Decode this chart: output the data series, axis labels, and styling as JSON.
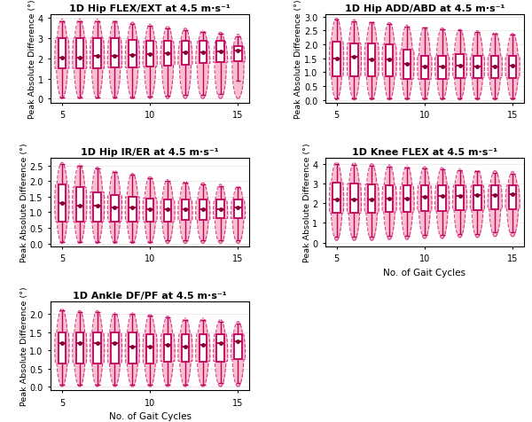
{
  "panels": [
    {
      "title": "1D Hip FLEX/EXT at 4.5 m·s⁻¹",
      "ylabel": "Peak Absolute Difference (°)",
      "ylim": [
        -0.2,
        4.2
      ],
      "yticks": [
        0,
        1,
        2,
        3,
        4
      ],
      "medians": [
        2.05,
        2.05,
        2.1,
        2.1,
        2.15,
        2.2,
        2.25,
        2.3,
        2.3,
        2.35,
        2.4
      ],
      "q1": [
        1.5,
        1.5,
        1.5,
        1.55,
        1.55,
        1.6,
        1.65,
        1.7,
        1.75,
        1.8,
        1.85
      ],
      "q3": [
        3.0,
        3.0,
        3.0,
        3.0,
        2.9,
        2.85,
        2.85,
        2.85,
        2.85,
        2.85,
        2.6
      ],
      "whislo": [
        0.05,
        0.05,
        0.05,
        0.05,
        0.05,
        0.1,
        0.15,
        0.2,
        0.2,
        0.25,
        0.9
      ],
      "whishi": [
        3.85,
        3.85,
        3.85,
        3.85,
        3.7,
        3.6,
        3.5,
        3.4,
        3.3,
        3.2,
        3.1
      ],
      "vmin": [
        0.0,
        0.0,
        0.0,
        0.0,
        0.0,
        0.0,
        0.0,
        0.0,
        0.0,
        0.0,
        0.0
      ],
      "vmax": [
        3.95,
        3.95,
        3.95,
        3.9,
        3.8,
        3.7,
        3.6,
        3.5,
        3.4,
        3.3,
        3.2
      ]
    },
    {
      "title": "1D Hip ADD/ABD at 4.5 m·s⁻¹",
      "ylabel": "Peak Absolute Difference (°)",
      "ylim": [
        -0.1,
        3.1
      ],
      "yticks": [
        0.0,
        0.5,
        1.0,
        1.5,
        2.0,
        2.5,
        3.0
      ],
      "medians": [
        1.5,
        1.55,
        1.45,
        1.45,
        1.3,
        1.2,
        1.2,
        1.25,
        1.2,
        1.2,
        1.25
      ],
      "q1": [
        0.85,
        0.85,
        0.85,
        0.85,
        0.75,
        0.75,
        0.75,
        0.8,
        0.8,
        0.8,
        0.8
      ],
      "q3": [
        2.1,
        2.05,
        2.05,
        2.0,
        1.8,
        1.6,
        1.6,
        1.65,
        1.6,
        1.6,
        1.6
      ],
      "whislo": [
        0.05,
        0.05,
        0.05,
        0.05,
        0.05,
        0.05,
        0.05,
        0.05,
        0.05,
        0.05,
        0.05
      ],
      "whishi": [
        2.9,
        2.85,
        2.8,
        2.75,
        2.65,
        2.6,
        2.55,
        2.5,
        2.45,
        2.4,
        2.35
      ],
      "vmin": [
        0.0,
        0.0,
        0.0,
        0.0,
        0.0,
        0.0,
        0.0,
        0.0,
        0.0,
        0.0,
        0.0
      ],
      "vmax": [
        2.95,
        2.9,
        2.85,
        2.8,
        2.7,
        2.65,
        2.6,
        2.55,
        2.5,
        2.45,
        2.4
      ]
    },
    {
      "title": "1D Hip IR/ER at 4.5 m·s⁻¹",
      "ylabel": "Peak Absolute Difference (°)",
      "ylim": [
        -0.1,
        2.75
      ],
      "yticks": [
        0.0,
        0.5,
        1.0,
        1.5,
        2.0,
        2.5
      ],
      "medians": [
        1.3,
        1.2,
        1.2,
        1.15,
        1.15,
        1.1,
        1.1,
        1.1,
        1.1,
        1.1,
        1.15
      ],
      "q1": [
        0.7,
        0.7,
        0.7,
        0.7,
        0.7,
        0.7,
        0.7,
        0.75,
        0.75,
        0.8,
        0.8
      ],
      "q3": [
        1.9,
        1.8,
        1.65,
        1.55,
        1.5,
        1.45,
        1.4,
        1.4,
        1.4,
        1.4,
        1.4
      ],
      "whislo": [
        0.05,
        0.05,
        0.05,
        0.05,
        0.05,
        0.05,
        0.1,
        0.1,
        0.1,
        0.1,
        0.1
      ],
      "whishi": [
        2.55,
        2.5,
        2.4,
        2.3,
        2.2,
        2.1,
        2.0,
        1.95,
        1.9,
        1.85,
        1.8
      ],
      "vmin": [
        0.0,
        0.0,
        0.0,
        0.0,
        0.0,
        0.0,
        0.0,
        0.0,
        0.0,
        0.0,
        0.0
      ],
      "vmax": [
        2.6,
        2.55,
        2.45,
        2.35,
        2.25,
        2.15,
        2.05,
        2.0,
        1.95,
        1.9,
        1.85
      ]
    },
    {
      "title": "1D Knee FLEX at 4.5 m·s⁻¹",
      "ylabel": "Peak Absolute Difference (°)",
      "ylim": [
        -0.2,
        4.3
      ],
      "yticks": [
        0,
        1,
        2,
        3,
        4
      ],
      "medians": [
        2.2,
        2.2,
        2.2,
        2.25,
        2.25,
        2.3,
        2.35,
        2.35,
        2.4,
        2.4,
        2.45
      ],
      "q1": [
        1.5,
        1.5,
        1.5,
        1.55,
        1.55,
        1.6,
        1.6,
        1.65,
        1.65,
        1.7,
        1.7
      ],
      "q3": [
        3.05,
        3.0,
        2.95,
        2.9,
        2.9,
        2.9,
        2.9,
        2.9,
        2.9,
        2.9,
        2.9
      ],
      "whislo": [
        0.3,
        0.3,
        0.3,
        0.35,
        0.35,
        0.4,
        0.4,
        0.45,
        0.45,
        0.5,
        0.5
      ],
      "whishi": [
        4.0,
        3.95,
        3.9,
        3.85,
        3.8,
        3.75,
        3.7,
        3.65,
        3.6,
        3.55,
        3.5
      ],
      "vmin": [
        0.1,
        0.1,
        0.1,
        0.15,
        0.15,
        0.2,
        0.2,
        0.25,
        0.25,
        0.3,
        0.3
      ],
      "vmax": [
        4.1,
        4.05,
        4.0,
        3.95,
        3.9,
        3.85,
        3.8,
        3.75,
        3.7,
        3.65,
        3.6
      ]
    },
    {
      "title": "1D Ankle DF/PF at 4.5 m·s⁻¹",
      "ylabel": "Peak Absolute Difference (°)",
      "ylim": [
        -0.1,
        2.35
      ],
      "yticks": [
        0.0,
        0.5,
        1.0,
        1.5,
        2.0
      ],
      "medians": [
        1.2,
        1.2,
        1.2,
        1.2,
        1.1,
        1.1,
        1.15,
        1.1,
        1.15,
        1.2,
        1.25
      ],
      "q1": [
        0.65,
        0.65,
        0.65,
        0.65,
        0.65,
        0.65,
        0.7,
        0.7,
        0.7,
        0.7,
        0.75
      ],
      "q3": [
        1.5,
        1.5,
        1.5,
        1.5,
        1.5,
        1.45,
        1.45,
        1.45,
        1.45,
        1.45,
        1.45
      ],
      "whislo": [
        0.05,
        0.05,
        0.05,
        0.05,
        0.05,
        0.05,
        0.05,
        0.05,
        0.05,
        0.1,
        0.1
      ],
      "whishi": [
        2.1,
        2.05,
        2.05,
        2.0,
        2.0,
        1.95,
        1.9,
        1.85,
        1.85,
        1.8,
        1.75
      ],
      "vmin": [
        0.0,
        0.0,
        0.0,
        0.0,
        0.0,
        0.0,
        0.0,
        0.0,
        0.0,
        0.0,
        0.0
      ],
      "vmax": [
        2.15,
        2.1,
        2.1,
        2.05,
        2.05,
        2.0,
        1.95,
        1.9,
        1.9,
        1.85,
        1.8
      ]
    }
  ],
  "n_groups": 11,
  "x_positions": [
    5,
    6,
    7,
    8,
    9,
    10,
    11,
    12,
    13,
    14,
    15
  ],
  "xlabel": "No. of Gait Cycles",
  "box_color": "#c0005a",
  "violin_fill": "#f9c0d0",
  "median_dot_color": "#7a0030",
  "background_color": "#ffffff"
}
